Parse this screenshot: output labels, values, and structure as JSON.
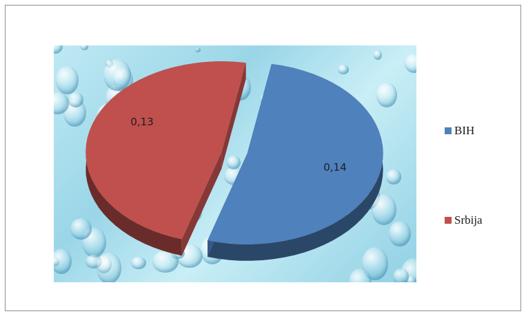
{
  "chart_data": {
    "type": "pie",
    "style": "3d-exploded",
    "categories": [
      "BIH",
      "Srbija"
    ],
    "values": [
      0.14,
      0.13
    ],
    "data_labels": [
      "0,14",
      "0,13"
    ],
    "colors": [
      "#4f81bd",
      "#c0504d"
    ],
    "legend_position": "right",
    "title": ""
  },
  "legend": {
    "items": [
      {
        "label": "BIH",
        "color": "#4f81bd"
      },
      {
        "label": "Srbija",
        "color": "#c0504d"
      }
    ]
  }
}
